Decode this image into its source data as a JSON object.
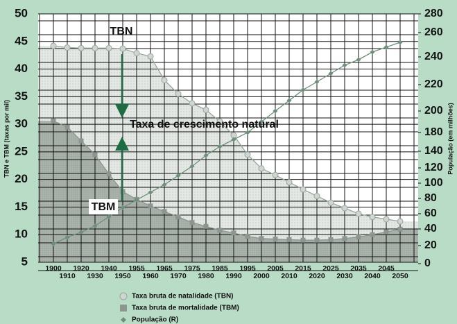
{
  "chart_data": {
    "type": "line",
    "y_label": "TBN e TBM (taxas por mil)",
    "y2_label": "População (em milhões)",
    "categories": [
      "1900",
      "1910",
      "1920",
      "1930",
      "1940",
      "1950",
      "1955",
      "1960",
      "1965",
      "1970",
      "1975",
      "1980",
      "1985",
      "1990",
      "1995",
      "2000",
      "2005",
      "2010",
      "2015",
      "2020",
      "2025",
      "2030",
      "2035",
      "2040",
      "2045",
      "2050"
    ],
    "series": [
      {
        "name": "Taxa bruta de natalidade (TBN)",
        "color": "#98a59c",
        "marker": "circle",
        "values": [
          44.2,
          43.9,
          43.8,
          43.8,
          43.8,
          43.7,
          42.9,
          42.3,
          38,
          35.5,
          33.8,
          32.6,
          30.5,
          28,
          24.5,
          22,
          20.8,
          19.5,
          18.2,
          17,
          15.8,
          14.8,
          13.8,
          13.2,
          12.8,
          12.4
        ]
      },
      {
        "name": "Taxa bruta de mortalidade (TBM)",
        "color": "#8c968f",
        "marker": "square",
        "values": [
          30.6,
          29.5,
          27,
          24.5,
          21,
          17.8,
          16.4,
          15.2,
          14.2,
          13.2,
          12.2,
          11.5,
          10.8,
          10.3,
          9.7,
          9.3,
          9.2,
          9.1,
          9,
          9,
          9.1,
          9.3,
          9.6,
          10,
          10.5,
          11
        ]
      },
      {
        "name": "População (R)",
        "color": "#6f8f7b",
        "marker": "diamond",
        "axis": "y2",
        "values": [
          22,
          30,
          36,
          44,
          56,
          68,
          78,
          88,
          98,
          110,
          122,
          135,
          150,
          165,
          180,
          190,
          200,
          208,
          216,
          222,
          228,
          234,
          238,
          244,
          248,
          252
        ]
      }
    ],
    "ylim": [
      5,
      50
    ],
    "yticks": [
      5,
      10,
      15,
      20,
      25,
      30,
      35,
      40,
      45,
      50
    ],
    "y2lim": [
      0,
      280
    ],
    "y2ticks": [
      0,
      20,
      40,
      60,
      80,
      100,
      120,
      140,
      180,
      200,
      220,
      240,
      260,
      280
    ],
    "grid": true,
    "annotations": {
      "tbn": "TBN",
      "tbm": "TBM",
      "growth": "Taxa de crescimento natural"
    }
  }
}
